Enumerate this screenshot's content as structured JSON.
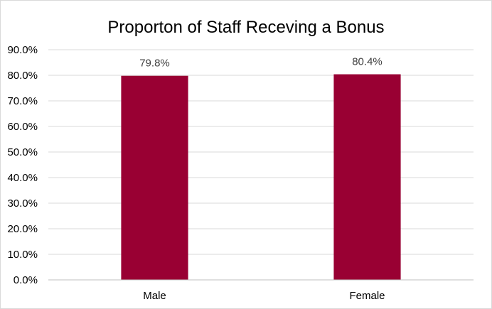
{
  "chart_data": {
    "type": "bar",
    "title": "Proporton of Staff Receving a Bonus",
    "categories": [
      "Male",
      "Female"
    ],
    "values": [
      79.8,
      80.4
    ],
    "data_labels": [
      "79.8%",
      "80.4%"
    ],
    "y_ticks": [
      "0.0%",
      "10.0%",
      "20.0%",
      "30.0%",
      "40.0%",
      "50.0%",
      "60.0%",
      "70.0%",
      "80.0%",
      "90.0%"
    ],
    "ylim": [
      0,
      90
    ],
    "xlabel": "",
    "ylabel": "",
    "grid": true,
    "legend": "none",
    "bar_color": "#990033"
  }
}
